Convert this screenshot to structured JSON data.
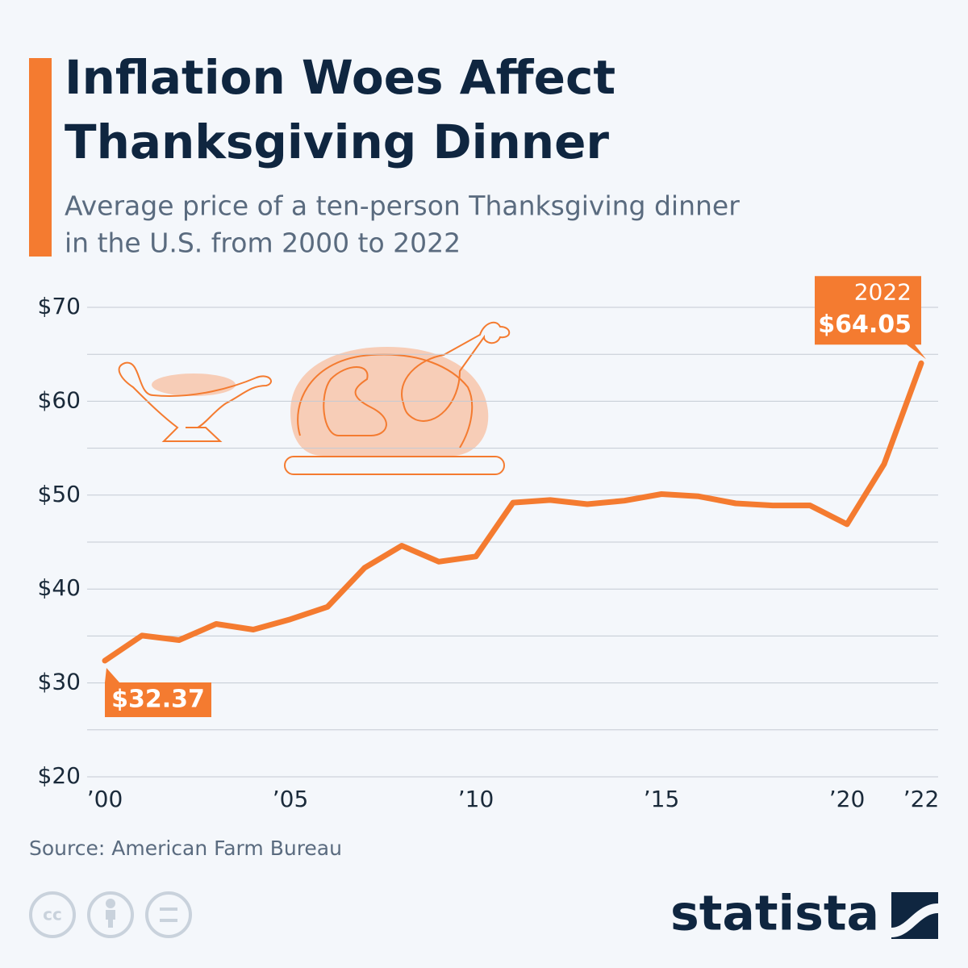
{
  "chart_data": {
    "type": "line",
    "title": [
      "Inflation Woes Affect",
      "Thanksgiving Dinner"
    ],
    "subtitle": [
      "Average price of a ten-person Thanksgiving dinner",
      "in the U.S. from 2000 to 2022"
    ],
    "source": "Source: American Farm Bureau",
    "brand": "statista",
    "x": [
      2000,
      2001,
      2002,
      2003,
      2004,
      2005,
      2006,
      2007,
      2008,
      2009,
      2010,
      2011,
      2012,
      2013,
      2014,
      2015,
      2016,
      2017,
      2018,
      2019,
      2020,
      2021,
      2022
    ],
    "values": [
      32.37,
      35.04,
      34.56,
      36.28,
      35.68,
      36.78,
      38.1,
      42.26,
      44.61,
      42.91,
      43.47,
      49.2,
      49.48,
      49.04,
      49.41,
      50.11,
      49.87,
      49.12,
      48.9,
      48.91,
      46.9,
      53.31,
      64.05
    ],
    "value_labels": [
      "$32.37",
      null,
      null,
      null,
      null,
      null,
      null,
      null,
      null,
      null,
      null,
      null,
      null,
      null,
      null,
      null,
      null,
      null,
      null,
      null,
      null,
      null,
      "$64.05"
    ],
    "color": "#f47b30",
    "xlim": [
      2000,
      2022
    ],
    "xticks": [
      {
        "value": 2000,
        "label": "’00"
      },
      {
        "value": 2005,
        "label": "’05"
      },
      {
        "value": 2010,
        "label": "’10"
      },
      {
        "value": 2015,
        "label": "’15"
      },
      {
        "value": 2020,
        "label": "’20"
      },
      {
        "value": 2022,
        "label": "’22"
      }
    ],
    "ylim": [
      20,
      70
    ],
    "yticks": [
      {
        "value": 20,
        "label": "$20"
      },
      {
        "value": 30,
        "label": "$30"
      },
      {
        "value": 40,
        "label": "$40"
      },
      {
        "value": 50,
        "label": "$50"
      },
      {
        "value": 60,
        "label": "$60"
      },
      {
        "value": 70,
        "label": "$70"
      }
    ],
    "minor_yticks": [
      25,
      35,
      45,
      55,
      65
    ],
    "grid": true
  }
}
